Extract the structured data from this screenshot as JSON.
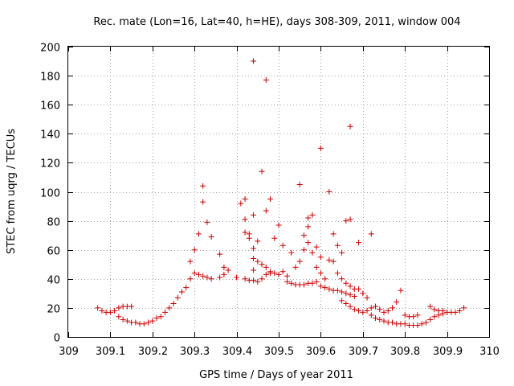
{
  "chart_data": {
    "type": "scatter",
    "title": "Rec. mate (Lon=16, Lat=40, h=HE), days 308-309, 2011, window 004",
    "xlabel": "GPS time / Days of year 2011",
    "ylabel": "STEC from uqrg / TECUs",
    "xlim": [
      309,
      310
    ],
    "ylim": [
      0,
      200
    ],
    "grid": true,
    "marker": "+",
    "marker_color": "#cc0000",
    "x_ticks": [
      "309",
      "309.1",
      "309.2",
      "309.3",
      "309.4",
      "309.5",
      "309.6",
      "309.7",
      "309.8",
      "309.9",
      "310"
    ],
    "y_ticks": [
      "0",
      "20",
      "40",
      "60",
      "80",
      "100",
      "120",
      "140",
      "160",
      "180",
      "200"
    ],
    "points": [
      [
        309.07,
        20
      ],
      [
        309.08,
        18
      ],
      [
        309.09,
        17
      ],
      [
        309.1,
        17
      ],
      [
        309.11,
        18
      ],
      [
        309.12,
        20
      ],
      [
        309.13,
        21
      ],
      [
        309.14,
        21
      ],
      [
        309.15,
        21
      ],
      [
        309.12,
        14
      ],
      [
        309.13,
        12
      ],
      [
        309.14,
        11
      ],
      [
        309.15,
        10
      ],
      [
        309.16,
        10
      ],
      [
        309.17,
        9
      ],
      [
        309.18,
        9
      ],
      [
        309.19,
        10
      ],
      [
        309.2,
        11
      ],
      [
        309.21,
        13
      ],
      [
        309.22,
        14
      ],
      [
        309.23,
        17
      ],
      [
        309.24,
        20
      ],
      [
        309.25,
        23
      ],
      [
        309.26,
        27
      ],
      [
        309.27,
        31
      ],
      [
        309.28,
        34
      ],
      [
        309.29,
        40
      ],
      [
        309.3,
        44
      ],
      [
        309.31,
        43
      ],
      [
        309.32,
        42
      ],
      [
        309.33,
        41
      ],
      [
        309.34,
        40
      ],
      [
        309.36,
        41
      ],
      [
        309.37,
        43
      ],
      [
        309.38,
        46
      ],
      [
        309.4,
        41
      ],
      [
        309.42,
        40
      ],
      [
        309.43,
        39
      ],
      [
        309.44,
        39
      ],
      [
        309.29,
        52
      ],
      [
        309.3,
        60
      ],
      [
        309.31,
        71
      ],
      [
        309.32,
        93
      ],
      [
        309.32,
        104
      ],
      [
        309.33,
        79
      ],
      [
        309.34,
        69
      ],
      [
        309.36,
        57
      ],
      [
        309.37,
        48
      ],
      [
        309.41,
        92
      ],
      [
        309.42,
        95
      ],
      [
        309.42,
        81
      ],
      [
        309.43,
        71
      ],
      [
        309.44,
        61
      ],
      [
        309.44,
        84
      ],
      [
        309.45,
        66
      ],
      [
        309.46,
        114
      ],
      [
        309.47,
        87
      ],
      [
        309.44,
        190
      ],
      [
        309.47,
        177
      ],
      [
        309.48,
        95
      ],
      [
        309.49,
        68
      ],
      [
        309.5,
        77
      ],
      [
        309.51,
        63
      ],
      [
        309.53,
        58
      ],
      [
        309.42,
        72
      ],
      [
        309.43,
        68
      ],
      [
        309.44,
        54
      ],
      [
        309.45,
        52
      ],
      [
        309.46,
        50
      ],
      [
        309.47,
        48
      ],
      [
        309.48,
        45
      ],
      [
        309.49,
        44
      ],
      [
        309.44,
        46
      ],
      [
        309.45,
        38
      ],
      [
        309.46,
        40
      ],
      [
        309.47,
        43
      ],
      [
        309.48,
        44
      ],
      [
        309.5,
        43
      ],
      [
        309.51,
        45
      ],
      [
        309.52,
        42
      ],
      [
        309.52,
        38
      ],
      [
        309.53,
        37
      ],
      [
        309.54,
        36
      ],
      [
        309.55,
        36
      ],
      [
        309.56,
        36
      ],
      [
        309.57,
        37
      ],
      [
        309.58,
        37
      ],
      [
        309.59,
        38
      ],
      [
        309.55,
        105
      ],
      [
        309.56,
        70
      ],
      [
        309.57,
        82
      ],
      [
        309.57,
        76
      ],
      [
        309.58,
        84
      ],
      [
        309.59,
        62
      ],
      [
        309.6,
        55
      ],
      [
        309.6,
        130
      ],
      [
        309.54,
        48
      ],
      [
        309.55,
        52
      ],
      [
        309.56,
        60
      ],
      [
        309.57,
        65
      ],
      [
        309.58,
        58
      ],
      [
        309.59,
        48
      ],
      [
        309.6,
        44
      ],
      [
        309.61,
        40
      ],
      [
        309.6,
        35
      ],
      [
        309.61,
        34
      ],
      [
        309.62,
        33
      ],
      [
        309.63,
        32
      ],
      [
        309.64,
        32
      ],
      [
        309.65,
        31
      ],
      [
        309.66,
        30
      ],
      [
        309.67,
        29
      ],
      [
        309.68,
        28
      ],
      [
        309.62,
        100
      ],
      [
        309.63,
        71
      ],
      [
        309.64,
        63
      ],
      [
        309.65,
        58
      ],
      [
        309.66,
        80
      ],
      [
        309.67,
        81
      ],
      [
        309.67,
        145
      ],
      [
        309.69,
        65
      ],
      [
        309.72,
        71
      ],
      [
        309.62,
        53
      ],
      [
        309.63,
        52
      ],
      [
        309.64,
        44
      ],
      [
        309.65,
        40
      ],
      [
        309.66,
        37
      ],
      [
        309.67,
        35
      ],
      [
        309.68,
        33
      ],
      [
        309.69,
        33
      ],
      [
        309.7,
        30
      ],
      [
        309.71,
        27
      ],
      [
        309.65,
        25
      ],
      [
        309.66,
        23
      ],
      [
        309.67,
        21
      ],
      [
        309.68,
        19
      ],
      [
        309.69,
        18
      ],
      [
        309.7,
        17
      ],
      [
        309.71,
        18
      ],
      [
        309.72,
        20
      ],
      [
        309.73,
        21
      ],
      [
        309.74,
        19
      ],
      [
        309.72,
        15
      ],
      [
        309.73,
        13
      ],
      [
        309.74,
        12
      ],
      [
        309.75,
        11
      ],
      [
        309.76,
        10
      ],
      [
        309.77,
        10
      ],
      [
        309.78,
        9
      ],
      [
        309.79,
        9
      ],
      [
        309.8,
        9
      ],
      [
        309.81,
        8
      ],
      [
        309.75,
        17
      ],
      [
        309.76,
        18
      ],
      [
        309.77,
        20
      ],
      [
        309.78,
        24
      ],
      [
        309.79,
        32
      ],
      [
        309.8,
        15
      ],
      [
        309.81,
        14
      ],
      [
        309.82,
        14
      ],
      [
        309.83,
        15
      ],
      [
        309.82,
        8
      ],
      [
        309.83,
        8
      ],
      [
        309.84,
        9
      ],
      [
        309.85,
        10
      ],
      [
        309.86,
        12
      ],
      [
        309.87,
        14
      ],
      [
        309.88,
        15
      ],
      [
        309.89,
        16
      ],
      [
        309.86,
        21
      ],
      [
        309.87,
        19
      ],
      [
        309.88,
        18
      ],
      [
        309.89,
        18
      ],
      [
        309.9,
        17
      ],
      [
        309.91,
        17
      ],
      [
        309.92,
        17
      ],
      [
        309.93,
        18
      ],
      [
        309.94,
        20
      ]
    ]
  }
}
